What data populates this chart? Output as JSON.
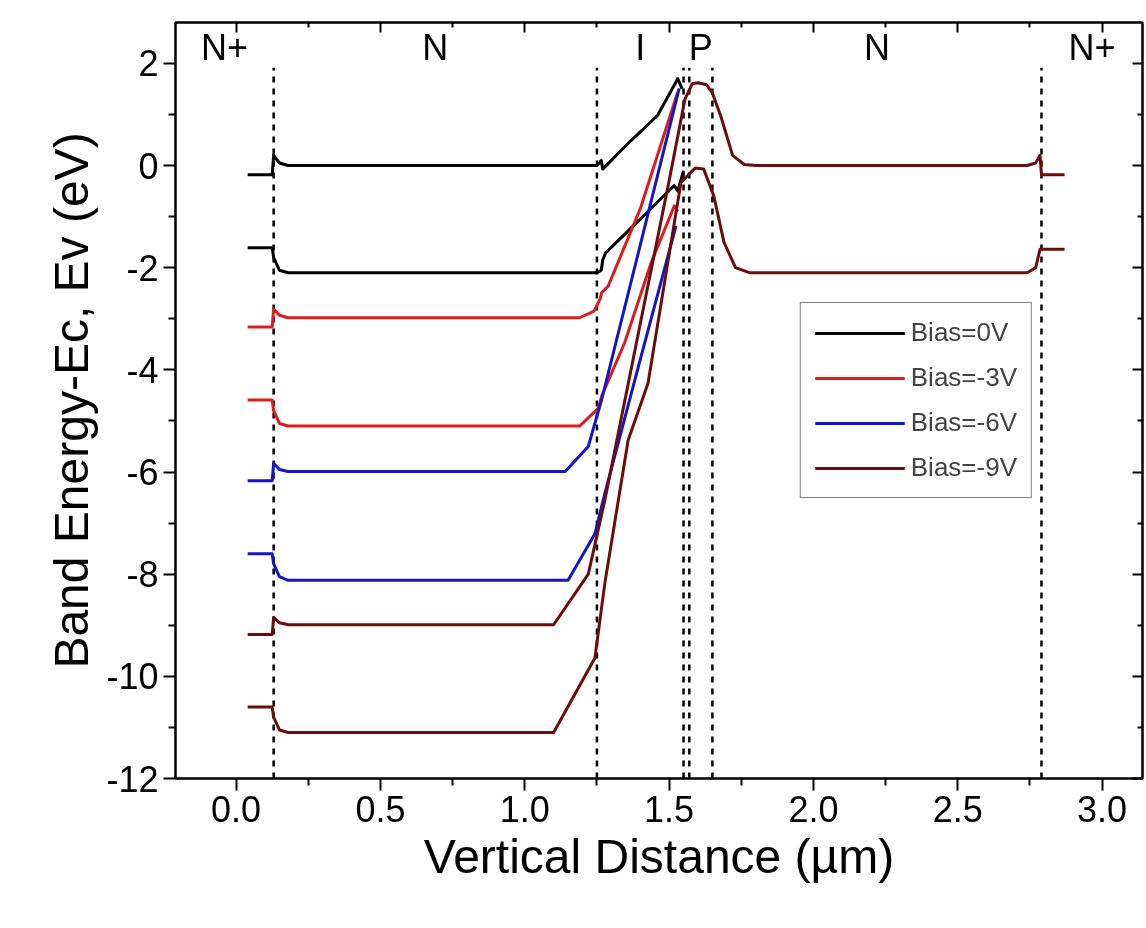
{
  "chart_data": {
    "type": "line",
    "xlabel": "Vertical Distance (µm)",
    "ylabel": "Band Energy-Ec, Ev (eV)",
    "xlim": [
      -0.21,
      3.14
    ],
    "ylim": [
      -12,
      2.8
    ],
    "xticks": [
      {
        "value": 0,
        "label": "0.0"
      },
      0.5,
      {
        "value": 1,
        "label": "1.0"
      },
      1.5,
      {
        "value": 2,
        "label": "2.0"
      },
      2.5,
      {
        "value": 3,
        "label": "3.0"
      }
    ],
    "yticks": [
      -12,
      -10,
      -8,
      -6,
      -4,
      -2,
      0,
      2
    ],
    "grid": false,
    "legend": "right",
    "marker": "none",
    "line_style": "solid",
    "ref_lines": [
      {
        "axis": "x",
        "value": 0.13,
        "color": "#000000",
        "line_style": "dashed"
      },
      {
        "axis": "x",
        "value": 1.25,
        "color": "#000000",
        "line_style": "dashed"
      },
      {
        "axis": "x",
        "value": 1.55,
        "color": "#000000",
        "line_style": "dashed"
      },
      {
        "axis": "x",
        "value": 1.57,
        "color": "#000000",
        "line_style": "dashed"
      },
      {
        "axis": "x",
        "value": 1.65,
        "color": "#000000",
        "line_style": "dashed"
      },
      {
        "axis": "x",
        "value": 2.79,
        "color": "#000000",
        "line_style": "dashed"
      }
    ],
    "annotations": [
      "N+",
      "N",
      "I",
      "P",
      "N",
      "N+"
    ],
    "series": [
      {
        "name": "Bias=0V",
        "color": "#000000",
        "x": [
          0.04,
          0.125,
          0.13,
          0.15,
          0.18,
          1.25,
          1.265,
          1.27,
          1.35,
          1.46,
          1.53,
          1.545
        ],
        "values": [
          -0.18,
          -0.18,
          0.2,
          0.05,
          0.0,
          0.0,
          0.1,
          -0.07,
          0.39,
          0.98,
          1.7,
          1.5
        ]
      },
      {
        "color": "#000000",
        "x": [
          0.04,
          0.125,
          0.13,
          0.15,
          0.18,
          1.25,
          1.265,
          1.27,
          1.28,
          1.4,
          1.518,
          1.53,
          1.55
        ],
        "values": [
          -1.61,
          -1.61,
          -1.8,
          -2.05,
          -2.1,
          -2.1,
          -2.05,
          -1.85,
          -1.71,
          -1.05,
          -0.39,
          -0.5,
          -0.1
        ]
      },
      {
        "name": "Bias=-3V",
        "color": "#dd1c1c",
        "x": [
          0.04,
          0.125,
          0.13,
          0.15,
          0.18,
          1.19,
          1.24,
          1.262,
          1.266,
          1.289,
          1.4,
          1.53
        ],
        "values": [
          -3.16,
          -3.16,
          -2.81,
          -2.93,
          -2.98,
          -2.98,
          -2.85,
          -2.6,
          -2.49,
          -2.36,
          -0.85,
          1.44
        ]
      },
      {
        "color": "#dd1c1c",
        "x": [
          0.04,
          0.125,
          0.13,
          0.15,
          0.18,
          1.19,
          1.255,
          1.266,
          1.346,
          1.438,
          1.518,
          1.53
        ],
        "values": [
          -4.59,
          -4.59,
          -4.8,
          -5.05,
          -5.1,
          -5.1,
          -4.75,
          -4.52,
          -3.47,
          -1.9,
          -0.79,
          -0.9
        ]
      },
      {
        "name": "Bias=-6V",
        "color": "#1414c8",
        "x": [
          0.04,
          0.125,
          0.13,
          0.15,
          0.18,
          1.14,
          1.22,
          1.266,
          1.4,
          1.535
        ],
        "values": [
          -6.17,
          -6.17,
          -5.83,
          -5.95,
          -5.99,
          -5.99,
          -5.5,
          -4.59,
          -1.56,
          1.51
        ]
      },
      {
        "color": "#1414c8",
        "x": [
          0.04,
          0.125,
          0.13,
          0.15,
          0.18,
          1.15,
          1.243,
          1.277,
          1.4,
          1.524
        ],
        "values": [
          -7.6,
          -7.6,
          -7.8,
          -8.05,
          -8.12,
          -8.12,
          -7.21,
          -6.43,
          -3.8,
          -1.18
        ]
      },
      {
        "name": "Bias=-9V",
        "color": "#6b0d0d",
        "x": [
          0.04,
          0.125,
          0.13,
          0.15,
          0.18,
          1.1,
          1.22,
          1.277,
          1.4,
          1.5,
          1.555,
          1.58,
          1.6,
          1.63,
          1.65,
          1.68,
          1.72,
          1.76,
          1.8,
          2.74,
          2.77,
          2.785,
          2.79,
          2.87
        ],
        "values": [
          -9.18,
          -9.18,
          -8.85,
          -8.95,
          -8.99,
          -8.99,
          -8.0,
          -6.56,
          -3.1,
          -0.3,
          1.3,
          1.6,
          1.62,
          1.58,
          1.42,
          0.95,
          0.2,
          0.02,
          0.0,
          0.0,
          0.05,
          0.2,
          -0.18,
          -0.18
        ]
      },
      {
        "color": "#6b0d0d",
        "x": [
          0.04,
          0.125,
          0.13,
          0.15,
          0.18,
          1.1,
          1.243,
          1.277,
          1.358,
          1.427,
          1.541,
          1.59,
          1.62,
          1.655,
          1.69,
          1.73,
          1.78,
          2.74,
          2.77,
          2.785,
          2.87
        ],
        "values": [
          -10.6,
          -10.6,
          -10.8,
          -11.05,
          -11.1,
          -11.1,
          -9.64,
          -8.19,
          -5.38,
          -4.26,
          -0.33,
          -0.05,
          -0.07,
          -0.6,
          -1.5,
          -2.0,
          -2.1,
          -2.1,
          -2.0,
          -1.64,
          -1.64
        ]
      }
    ]
  }
}
